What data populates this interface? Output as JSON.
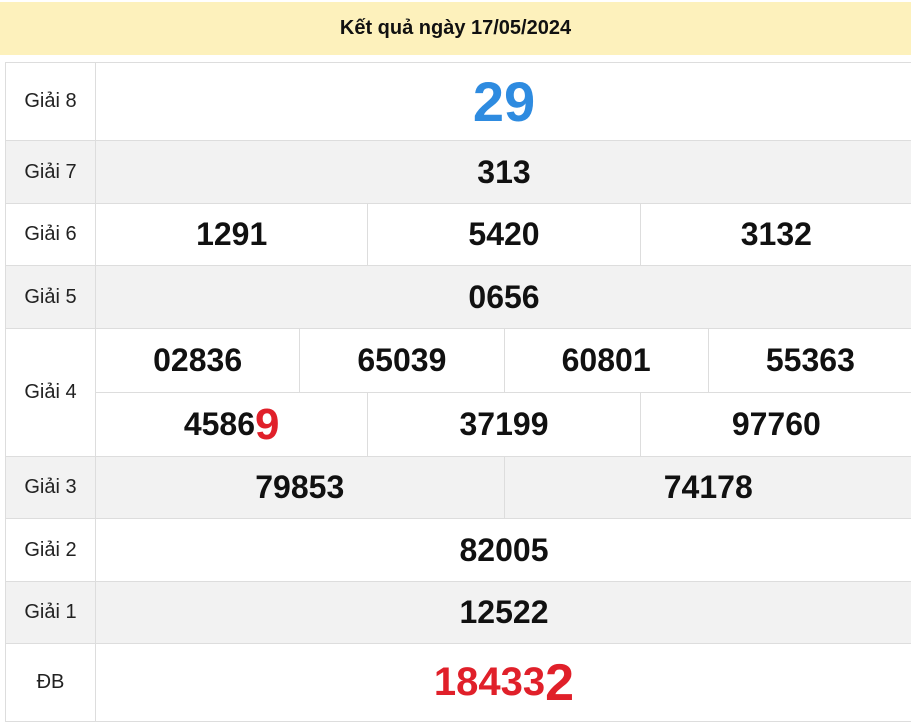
{
  "header": {
    "title": "Kết quả ngày 17/05/2024"
  },
  "colors": {
    "header_bg": "#fdf1bc",
    "accent_blue": "#2e8be0",
    "accent_red": "#e0202a"
  },
  "prizes": [
    {
      "label": "Giải 8",
      "rows": [
        [
          "29"
        ]
      ],
      "style": "blue"
    },
    {
      "label": "Giải 7",
      "rows": [
        [
          "313"
        ]
      ]
    },
    {
      "label": "Giải 6",
      "rows": [
        [
          "1291",
          "5420",
          "3132"
        ]
      ]
    },
    {
      "label": "Giải 5",
      "rows": [
        [
          "0656"
        ]
      ]
    },
    {
      "label": "Giải 4",
      "rows": [
        [
          "02836",
          "65039",
          "60801",
          "55363"
        ],
        [
          "45869",
          "37199",
          "97760"
        ]
      ],
      "highlight_last_digit_of": "45869"
    },
    {
      "label": "Giải 3",
      "rows": [
        [
          "79853",
          "74178"
        ]
      ]
    },
    {
      "label": "Giải 2",
      "rows": [
        [
          "82005"
        ]
      ]
    },
    {
      "label": "Giải 1",
      "rows": [
        [
          "12522"
        ]
      ]
    },
    {
      "label": "ĐB",
      "rows": [
        [
          "184332"
        ]
      ],
      "style": "red",
      "highlight_last_digit_of": "184332"
    }
  ]
}
